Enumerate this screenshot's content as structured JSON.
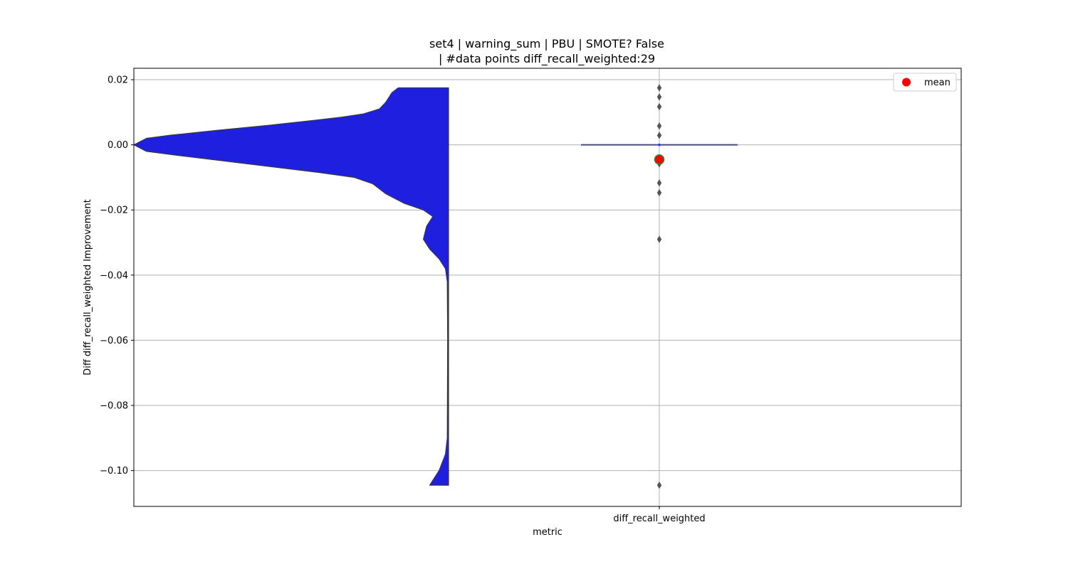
{
  "chart_data": {
    "type": "violin+box",
    "title_line1": "set4 | warning_sum | PBU | SMOTE? False",
    "title_line2": " | #data points diff_recall_weighted:29",
    "xlabel": "metric",
    "ylabel": "Diff diff_recall_weighted Improvement",
    "categories": [
      "diff_recall_weighted"
    ],
    "ylim": [
      -0.111,
      0.0235
    ],
    "y_ticks": [
      0.02,
      0.0,
      -0.02,
      -0.04,
      -0.06,
      -0.08,
      -0.1
    ],
    "y_tick_labels": [
      "0.02",
      "0.00",
      "−0.02",
      "−0.04",
      "−0.06",
      "−0.08",
      "−0.10"
    ],
    "grid": true,
    "legend": {
      "position": "top-right",
      "entries": [
        {
          "label": "mean",
          "color": "#ff0000",
          "marker": "circle"
        }
      ]
    },
    "violin": {
      "color": "#1f1fe0",
      "y_min": -0.1045,
      "y_max": 0.0175,
      "density_profile": [
        {
          "y": 0.0175,
          "w": 0.16
        },
        {
          "y": 0.016,
          "w": 0.18
        },
        {
          "y": 0.013,
          "w": 0.2
        },
        {
          "y": 0.011,
          "w": 0.22
        },
        {
          "y": 0.0095,
          "w": 0.27
        },
        {
          "y": 0.0085,
          "w": 0.34
        },
        {
          "y": 0.0075,
          "w": 0.43
        },
        {
          "y": 0.006,
          "w": 0.57
        },
        {
          "y": 0.0045,
          "w": 0.73
        },
        {
          "y": 0.003,
          "w": 0.88
        },
        {
          "y": 0.002,
          "w": 0.96
        },
        {
          "y": 0.0,
          "w": 1.0
        },
        {
          "y": -0.002,
          "w": 0.96
        },
        {
          "y": -0.003,
          "w": 0.88
        },
        {
          "y": -0.005,
          "w": 0.71
        },
        {
          "y": -0.007,
          "w": 0.54
        },
        {
          "y": -0.0085,
          "w": 0.41
        },
        {
          "y": -0.01,
          "w": 0.3
        },
        {
          "y": -0.012,
          "w": 0.24
        },
        {
          "y": -0.015,
          "w": 0.2
        },
        {
          "y": -0.018,
          "w": 0.14
        },
        {
          "y": -0.02,
          "w": 0.08
        },
        {
          "y": -0.022,
          "w": 0.05
        },
        {
          "y": -0.025,
          "w": 0.07
        },
        {
          "y": -0.029,
          "w": 0.08
        },
        {
          "y": -0.032,
          "w": 0.06
        },
        {
          "y": -0.035,
          "w": 0.03
        },
        {
          "y": -0.038,
          "w": 0.01
        },
        {
          "y": -0.042,
          "w": 0.004
        },
        {
          "y": -0.06,
          "w": 0.003
        },
        {
          "y": -0.09,
          "w": 0.004
        },
        {
          "y": -0.095,
          "w": 0.01
        },
        {
          "y": -0.1,
          "w": 0.03
        },
        {
          "y": -0.1045,
          "w": 0.06
        }
      ]
    },
    "box": {
      "median": 0.0,
      "q1": 0.0,
      "q3": 0.0,
      "whisker_low": 0.0,
      "whisker_high": 0.0,
      "mean": -0.0045,
      "outliers": [
        0.0175,
        0.0147,
        0.0117,
        0.0058,
        0.0029,
        -0.0058,
        -0.0117,
        -0.0147,
        -0.029,
        -0.1045
      ],
      "box_color": "#4a4a7a",
      "outlier_color": "#555555"
    }
  }
}
